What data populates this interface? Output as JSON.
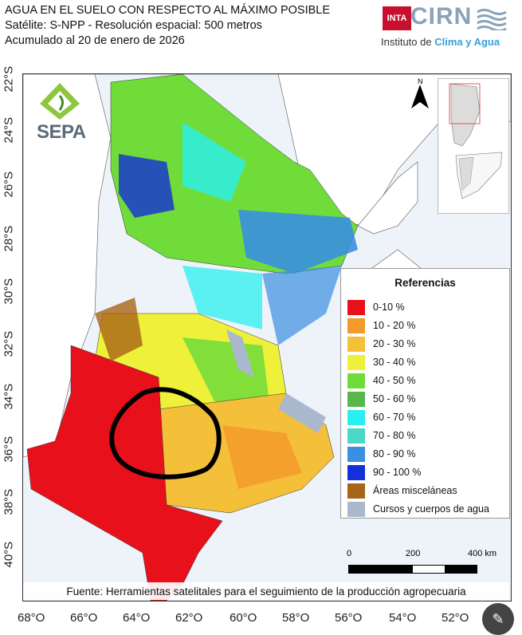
{
  "header": {
    "line1": "AGUA EN EL SUELO CON RESPECTO AL MÁXIMO POSIBLE",
    "line2": "Satélite: S-NPP - Resolución espacial: 500 metros",
    "line3": "Acumulado al 20 de enero de 2026"
  },
  "logos": {
    "inta": "INTA",
    "cirn": "CIRN",
    "institute_prefix": "Instituto de ",
    "institute_highlight": "Clima y Agua",
    "sepa": "SEPA"
  },
  "north_label": "N",
  "lat_labels": [
    "22°S",
    "24°S",
    "26°S",
    "28°S",
    "30°S",
    "32°S",
    "34°S",
    "36°S",
    "38°S",
    "40°S"
  ],
  "lon_labels": [
    "68°O",
    "66°O",
    "64°O",
    "62°O",
    "60°O",
    "58°O",
    "56°O",
    "54°O",
    "52°O"
  ],
  "legend": {
    "title": "Referencias",
    "items": [
      {
        "label": "0-10 %",
        "color": "#e8101a"
      },
      {
        "label": "10 - 20 %",
        "color": "#f39a2a"
      },
      {
        "label": "20 - 30 %",
        "color": "#f4c03a"
      },
      {
        "label": "30 - 40 %",
        "color": "#eef03a"
      },
      {
        "label": "40 - 50 %",
        "color": "#6fdc3a"
      },
      {
        "label": "50 - 60 %",
        "color": "#56b848"
      },
      {
        "label": "60 - 70 %",
        "color": "#29f0f0"
      },
      {
        "label": "70 - 80 %",
        "color": "#49d9c8"
      },
      {
        "label": "80 - 90 %",
        "color": "#3a8fe0"
      },
      {
        "label": "90 - 100 %",
        "color": "#1430d8"
      },
      {
        "label": "Áreas misceláneas",
        "color": "#a86418"
      },
      {
        "label": "Cursos y cuerpos de agua",
        "color": "#a9b8cc"
      }
    ]
  },
  "scale": {
    "zero": "0",
    "mid": "200",
    "end": "400 km"
  },
  "source": "Fuente: Herramientas satelitales para el seguimiento de la producción agropecuaria"
}
